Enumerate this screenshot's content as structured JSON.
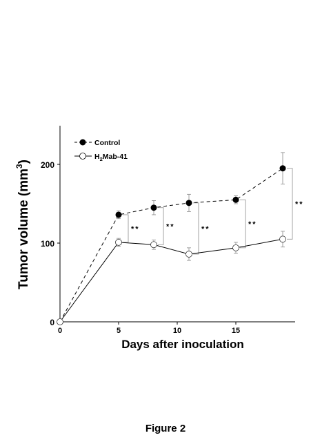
{
  "chart_data": {
    "type": "line",
    "xlabel": "Days after inoculation",
    "ylabel": "Tumor volume (mm",
    "ylabel_sup": "3",
    "ylabel_close": ")",
    "xlim": [
      0,
      20
    ],
    "ylim": [
      0,
      250
    ],
    "xticks": [
      0,
      5,
      10,
      15
    ],
    "yticks": [
      0,
      100,
      200
    ],
    "grid": false,
    "legend_position": "top-left",
    "series": [
      {
        "name": "Control",
        "marker": "filled-circle",
        "line": "dashed",
        "color": "#000000",
        "x": [
          0,
          5,
          8,
          11,
          15,
          19
        ],
        "y": [
          0,
          136,
          145,
          151,
          155,
          195
        ],
        "err": [
          0,
          5,
          9,
          11,
          5,
          20
        ]
      },
      {
        "name_prefix": "H",
        "name_sub": "2",
        "name_suffix": "Mab-41",
        "marker": "open-circle",
        "line": "solid",
        "color": "#000000",
        "x": [
          0,
          5,
          8,
          11,
          15,
          19
        ],
        "y": [
          0,
          101,
          98,
          86,
          94,
          105
        ],
        "err": [
          0,
          5,
          6,
          8,
          7,
          10
        ]
      }
    ],
    "significance": [
      {
        "x": 5,
        "label": "**"
      },
      {
        "x": 8,
        "label": "**"
      },
      {
        "x": 11,
        "label": "**"
      },
      {
        "x": 15,
        "label": "**"
      },
      {
        "x": 19,
        "label": "**"
      }
    ]
  },
  "caption": "Figure 2"
}
